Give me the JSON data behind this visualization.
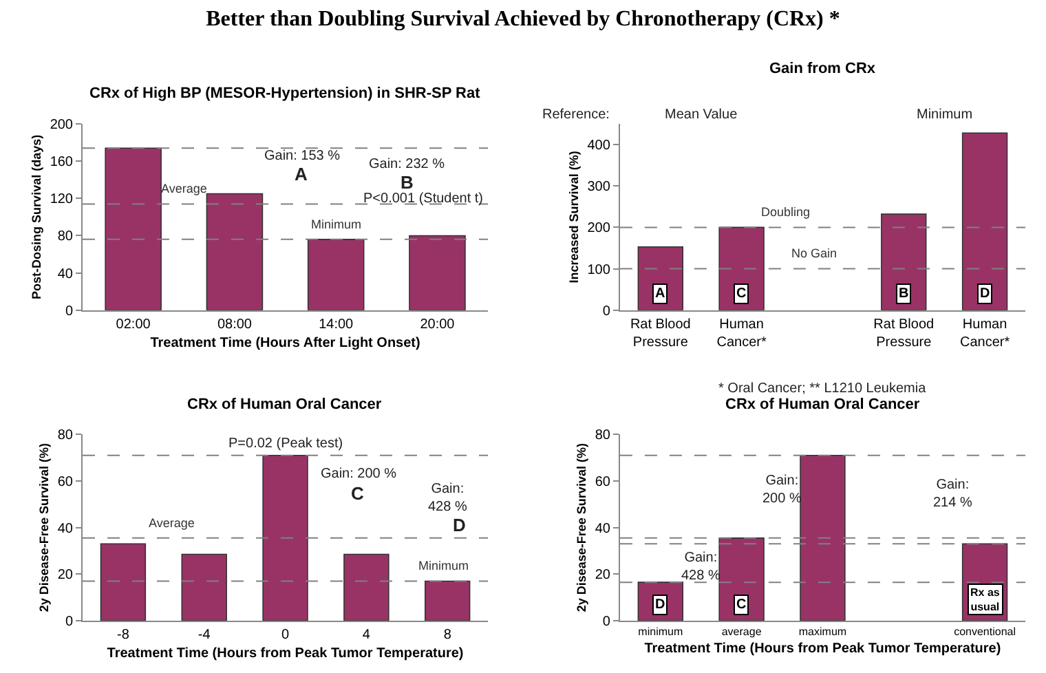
{
  "chart_data": [
    {
      "type": "bar",
      "title": "Better than Doubling Survival Achieved by Chronotherapy (CRx) *",
      "subtitle": "CRx of High BP (MESOR-Hypertension) in SHR-SP Rat",
      "xlabel": "Treatment Time (Hours After Light Onset)",
      "ylabel": "Post-Dosing Survival (days)",
      "categories": [
        "02:00",
        "08:00",
        "14:00",
        "20:00"
      ],
      "values": [
        174,
        125,
        76,
        80
      ],
      "color": "#993366",
      "ylim": [
        0,
        200
      ],
      "yticks": [
        0,
        40,
        80,
        120,
        160,
        200
      ],
      "ref_lines": [
        {
          "axis": "y",
          "value": 174,
          "line_style": "dashed",
          "color": "#808080"
        },
        {
          "axis": "y",
          "value": 114,
          "label": "Average",
          "line_style": "dashed",
          "color": "#808080"
        },
        {
          "axis": "y",
          "value": 76,
          "label": "Minimum",
          "line_style": "dashed",
          "color": "#808080"
        }
      ],
      "annotations": [
        "Gain: 153 %",
        "A",
        "Gain: 232 %",
        "B",
        "P<0.001 (Student t)"
      ]
    },
    {
      "type": "bar",
      "subtitle": "Gain from CRx",
      "ylabel": "Increased Survival (%)",
      "categories": [
        "Rat Blood Pressure",
        "Human Cancer*",
        null,
        "Rat Blood Pressure",
        "Human Cancer*"
      ],
      "values": [
        153,
        200,
        null,
        232,
        428
      ],
      "color": "#993366",
      "value_labels": [
        "A",
        "C",
        null,
        "B",
        "D"
      ],
      "ylim": [
        0,
        450
      ],
      "yticks": [
        0,
        100,
        200,
        300,
        400
      ],
      "ref_lines": [
        {
          "axis": "y",
          "value": 200,
          "label": "Doubling",
          "line_style": "dashed",
          "color": "#808080"
        },
        {
          "axis": "y",
          "value": 100,
          "label": "No Gain",
          "line_style": "dashed",
          "color": "#808080"
        }
      ],
      "annotations": [
        "Reference:",
        "Mean Value",
        "Minimum",
        "* Oral Cancer; ** L1210 Leukemia"
      ]
    },
    {
      "type": "bar",
      "subtitle": "CRx of Human Oral Cancer",
      "xlabel": "Treatment Time (Hours from Peak Tumor Temperature)",
      "ylabel": "2y Disease-Free Survival (%)",
      "categories": [
        "-8",
        "-4",
        "0",
        "4",
        "8"
      ],
      "values": [
        33,
        28.5,
        71,
        28.5,
        17
      ],
      "color": "#993366",
      "ylim": [
        0,
        80
      ],
      "yticks": [
        0,
        20,
        40,
        60,
        80
      ],
      "ref_lines": [
        {
          "axis": "y",
          "value": 71,
          "line_style": "dashed",
          "color": "#808080"
        },
        {
          "axis": "y",
          "value": 35.5,
          "label": "Average",
          "line_style": "dashed",
          "color": "#808080"
        },
        {
          "axis": "y",
          "value": 17,
          "label": "Minimum",
          "line_style": "dashed",
          "color": "#808080"
        }
      ],
      "annotations": [
        "P=0.02 (Peak test)",
        "Gain: 200 %",
        "C",
        "Gain: 428 %",
        "D"
      ]
    },
    {
      "type": "bar",
      "subtitle": "CRx of Human Oral Cancer",
      "xlabel": "Treatment Time (Hours from Peak Tumor Temperature)",
      "ylabel": "2y Disease-Free Survival (%)",
      "categories": [
        "minimum",
        "average",
        "maximum",
        null,
        "conventional"
      ],
      "values": [
        16.5,
        35.5,
        71,
        null,
        33
      ],
      "color": "#993366",
      "value_labels": [
        "D",
        "C",
        null,
        null,
        "Rx as usual"
      ],
      "ylim": [
        0,
        80
      ],
      "yticks": [
        0,
        20,
        40,
        60,
        80
      ],
      "ref_lines": [
        {
          "axis": "y",
          "value": 71,
          "line_style": "dashed",
          "color": "#808080"
        },
        {
          "axis": "y",
          "value": 35.5,
          "line_style": "dashed",
          "color": "#808080"
        },
        {
          "axis": "y",
          "value": 16.5,
          "line_style": "dashed",
          "color": "#808080"
        },
        {
          "axis": "y",
          "value": 33,
          "line_style": "dashed",
          "color": "#808080"
        }
      ],
      "annotations": [
        "Gain: 428 %",
        "Gain: 200 %",
        "Gain: 214 %"
      ]
    }
  ]
}
